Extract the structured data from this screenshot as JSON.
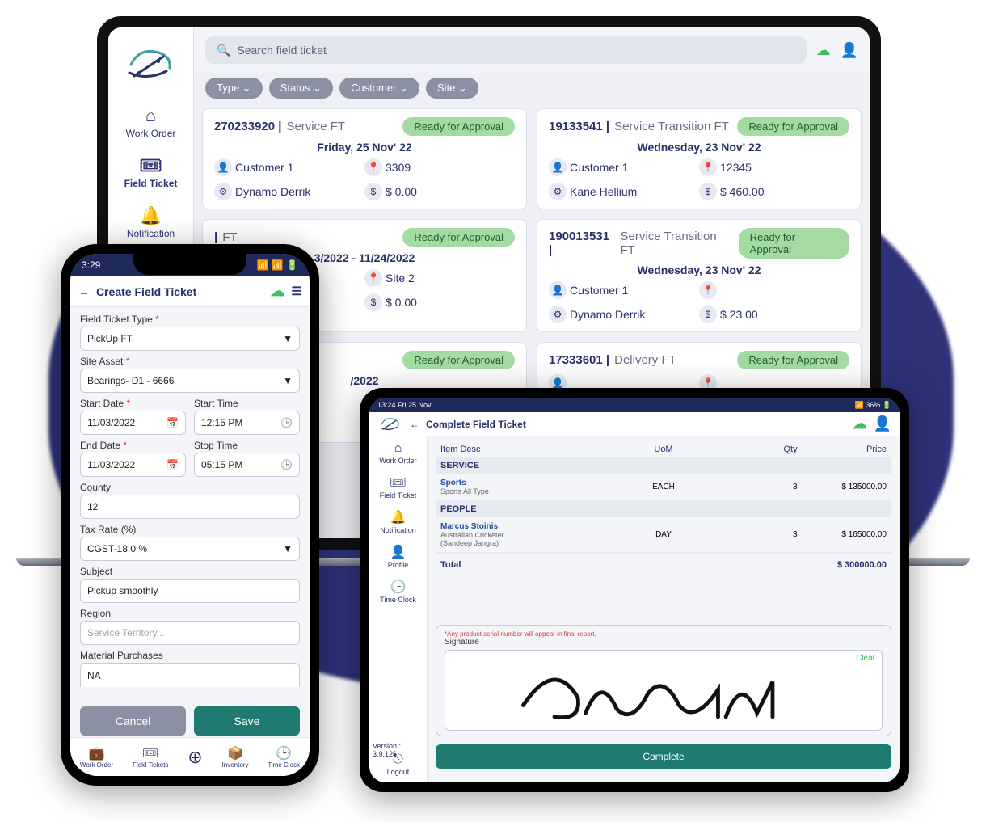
{
  "laptop": {
    "search_placeholder": "Search field ticket",
    "nav": {
      "work_order": "Work Order",
      "field_ticket": "Field Ticket",
      "notification": "Notification"
    },
    "filters": [
      "Type ⌄",
      "Status ⌄",
      "Customer ⌄",
      "Site ⌄"
    ],
    "tickets": [
      {
        "id": "270233920",
        "type": "Service FT",
        "badge": "Ready for Approval",
        "date": "Friday, 25 Nov' 22",
        "customer": "Customer 1",
        "site": "3309",
        "tech": "Dynamo Derrik",
        "amount": "$ 0.00"
      },
      {
        "id": "19133541",
        "type": "Service Transition FT",
        "badge": "Ready for Approval",
        "date": "Wednesday, 23 Nov' 22",
        "customer": "Customer 1",
        "site": "12345",
        "tech": "Kane Hellium",
        "amount": "$ 460.00"
      },
      {
        "id": "",
        "type": "FT",
        "badge": "Ready for Approval",
        "date": "3/2022 - 11/24/2022",
        "customer": "",
        "site": "Site 2",
        "tech": "",
        "amount": "$ 0.00"
      },
      {
        "id": "190013531",
        "type": "Service Transition FT",
        "badge": "Ready for Approval",
        "date": "Wednesday, 23 Nov' 22",
        "customer": "Customer 1",
        "site": "",
        "tech": "Dynamo Derrik",
        "amount": "$ 23.00"
      },
      {
        "id": "",
        "type": "",
        "badge": "Ready for Approval",
        "date": "/2022",
        "customer": "",
        "site": "",
        "tech": "",
        "amount": ""
      },
      {
        "id": "17333601",
        "type": "Delivery FT",
        "badge": "Ready for Approval",
        "date": "",
        "customer": "",
        "site": "",
        "tech": "",
        "amount": ""
      }
    ]
  },
  "phone": {
    "status_time": "3:29",
    "title": "Create Field Ticket",
    "labels": {
      "type": "Field Ticket Type",
      "asset": "Site Asset",
      "start_date": "Start Date",
      "start_time": "Start Time",
      "end_date": "End Date",
      "stop_time": "Stop Time",
      "county": "County",
      "tax": "Tax Rate (%)",
      "subject": "Subject",
      "region": "Region",
      "material": "Material Purchases"
    },
    "values": {
      "type": "PickUp FT",
      "asset": "Bearings- D1 - 6666",
      "start_date": "11/03/2022",
      "start_time": "12:15 PM",
      "end_date": "11/03/2022",
      "stop_time": "05:15 PM",
      "county": "12",
      "tax": "CGST-18.0 %",
      "subject": "Pickup smoothly",
      "region_placeholder": "Service Territory...",
      "material": "NA"
    },
    "buttons": {
      "cancel": "Cancel",
      "save": "Save"
    },
    "tabs": {
      "work_order": "Work Order",
      "field": "Field Tickets",
      "inventory": "Inventory",
      "time": "Time Clock"
    }
  },
  "tablet": {
    "status": "13:24  Fri 25 Nov",
    "battery": "36%",
    "title": "Complete Field Ticket",
    "nav": {
      "work_order": "Work Order",
      "field_ticket": "Field Ticket",
      "notification": "Notification",
      "profile": "Profile",
      "time_clock": "Time Clock",
      "logout": "Logout"
    },
    "cols": {
      "desc": "Item Desc",
      "uom": "UoM",
      "qty": "Qty",
      "price": "Price"
    },
    "sections": {
      "service": "SERVICE",
      "people": "PEOPLE"
    },
    "service_row": {
      "name": "Sports",
      "sub": "Sports All Type",
      "uom": "EACH",
      "qty": "3",
      "price": "$ 135000.00"
    },
    "people_row": {
      "name": "Marcus Stoinis",
      "sub": "Australian Cricketer",
      "sub2": "(Sandeep Jangra)",
      "uom": "DAY",
      "qty": "3",
      "price": "$ 165000.00"
    },
    "total_label": "Total",
    "total": "$ 300000.00",
    "sig_note": "*Any product serial number will appear in final report.",
    "sig_label": "Signature",
    "sig_clear": "Clear",
    "version_label": "Version :",
    "version": "3.9.126",
    "complete": "Complete"
  }
}
